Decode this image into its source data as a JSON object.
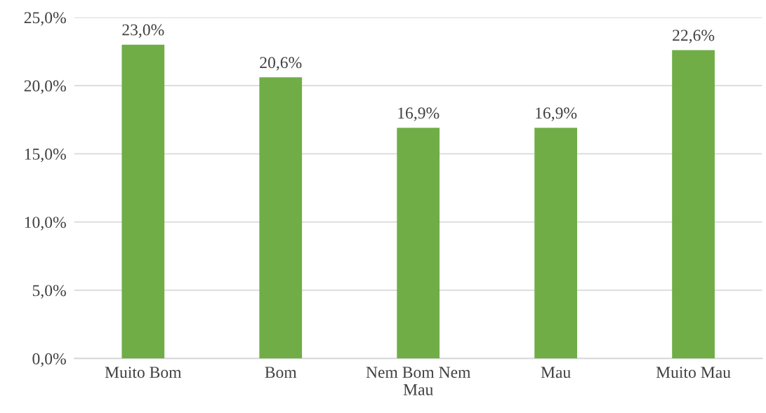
{
  "chart_data": {
    "type": "bar",
    "categories": [
      "Muito Bom",
      "Bom",
      "Nem Bom Nem Mau",
      "Mau",
      "Muito Mau"
    ],
    "values": [
      23.0,
      20.6,
      16.9,
      16.9,
      22.6
    ],
    "value_labels": [
      "23,0%",
      "20,6%",
      "16,9%",
      "16,9%",
      "22,6%"
    ],
    "color": "#70ad47",
    "ylim": [
      0,
      25
    ],
    "yticks": [
      {
        "value": 0,
        "label": "0,0%"
      },
      {
        "value": 5,
        "label": "5,0%"
      },
      {
        "value": 10,
        "label": "10,0%"
      },
      {
        "value": 15,
        "label": "15,0%"
      },
      {
        "value": 20,
        "label": "20,0%"
      },
      {
        "value": 25,
        "label": "25,0%"
      }
    ],
    "grid": "y",
    "legend": false
  }
}
